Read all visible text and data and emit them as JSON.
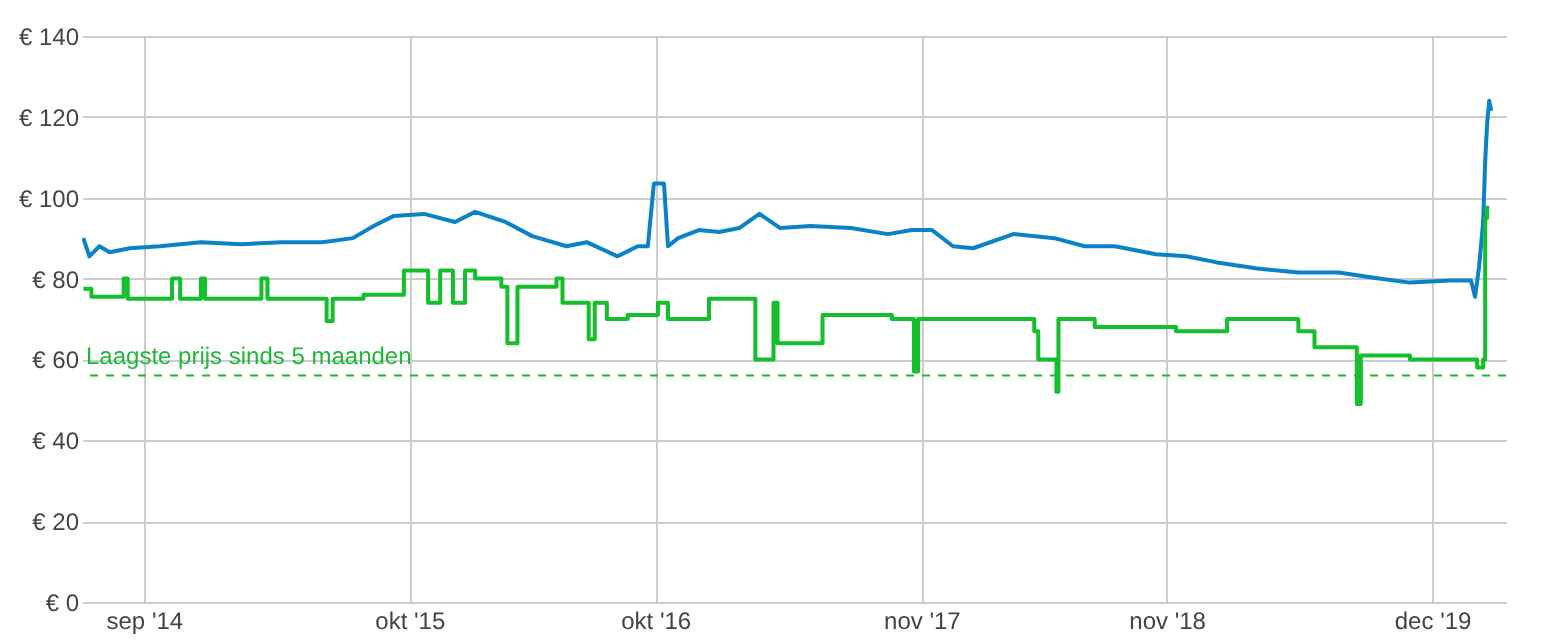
{
  "chart_data": {
    "type": "line",
    "xlim": [
      "2014-06-01",
      "2020-03-20"
    ],
    "xticks": [
      {
        "value": "2014-09-01",
        "label": "sep '14"
      },
      {
        "value": "2015-10-01",
        "label": "okt '15"
      },
      {
        "value": "2016-10-01",
        "label": "okt '16"
      },
      {
        "value": "2017-11-01",
        "label": "nov '17"
      },
      {
        "value": "2018-11-01",
        "label": "nov '18"
      },
      {
        "value": "2019-12-01",
        "label": "dec '19"
      }
    ],
    "ylim": [
      0,
      140
    ],
    "yticks": [
      {
        "value": 0,
        "label": "€ 0"
      },
      {
        "value": 20,
        "label": "€ 20"
      },
      {
        "value": 40,
        "label": "€ 40"
      },
      {
        "value": 60,
        "label": "€ 60"
      },
      {
        "value": 80,
        "label": "€ 80"
      },
      {
        "value": 100,
        "label": "€ 100"
      },
      {
        "value": 120,
        "label": "€ 120"
      },
      {
        "value": 140,
        "label": "€ 140"
      }
    ],
    "grid": true,
    "ref_lines": [
      {
        "axis": "y",
        "value": 56,
        "label": "Laagste prijs sinds 5 maanden",
        "color": "#1fb83a",
        "line_style": "dashed"
      }
    ],
    "series": [
      {
        "type": "line",
        "color": "#0a82c8",
        "x": [
          "2014-06-03",
          "2014-06-12",
          "2014-06-27",
          "2014-07-12",
          "2014-08-11",
          "2014-09-25",
          "2014-11-25",
          "2015-01-24",
          "2015-03-26",
          "2015-05-25",
          "2015-07-09",
          "2015-08-09",
          "2015-09-08",
          "2015-10-23",
          "2015-12-08",
          "2016-01-07",
          "2016-02-21",
          "2016-04-01",
          "2016-05-22",
          "2016-06-21",
          "2016-08-06",
          "2016-09-05",
          "2016-09-20",
          "2016-09-29",
          "2016-10-14",
          "2016-10-20",
          "2016-11-04",
          "2016-12-05",
          "2017-01-04",
          "2017-02-03",
          "2017-03-05",
          "2017-04-05",
          "2017-05-20",
          "2017-07-19",
          "2017-09-12",
          "2017-10-18",
          "2017-11-17",
          "2017-12-18",
          "2018-01-17",
          "2018-03-18",
          "2018-05-18",
          "2018-07-02",
          "2018-08-16",
          "2018-10-16",
          "2018-11-30",
          "2019-01-15",
          "2019-03-16",
          "2019-05-16",
          "2019-07-15",
          "2019-09-13",
          "2019-10-29",
          "2019-12-28",
          "2020-01-28",
          "2020-02-03",
          "2020-02-09",
          "2020-02-15",
          "2020-02-18",
          "2020-02-21",
          "2020-02-24",
          "2020-02-27"
        ],
        "values": [
          90,
          85.5,
          88,
          86.5,
          87.5,
          88,
          89,
          88.5,
          89,
          89,
          90,
          93,
          95.5,
          96,
          94,
          96.5,
          94,
          90.5,
          88,
          89,
          85.5,
          88,
          88,
          103.5,
          103.5,
          88,
          90,
          92,
          91.5,
          92.5,
          96,
          92.5,
          93,
          92.5,
          91,
          92,
          92,
          88,
          87.5,
          91,
          90,
          88,
          88,
          86,
          85.5,
          84,
          82.5,
          81.5,
          81.5,
          80,
          79,
          79.5,
          79.5,
          75.5,
          83,
          94,
          109,
          118.5,
          124,
          121.5
        ]
      },
      {
        "type": "step",
        "color": "#14bf2c",
        "x": [
          "2014-06-03",
          "2014-06-15",
          "2014-08-02",
          "2014-08-08",
          "2014-10-07",
          "2014-10-13",
          "2014-10-25",
          "2014-11-25",
          "2014-12-01",
          "2015-01-24",
          "2015-02-23",
          "2015-03-04",
          "2015-05-25",
          "2015-05-31",
          "2015-06-09",
          "2015-07-25",
          "2015-09-23",
          "2015-10-23",
          "2015-10-29",
          "2015-11-16",
          "2015-12-05",
          "2015-12-23",
          "2016-01-07",
          "2016-02-15",
          "2016-02-24",
          "2016-03-10",
          "2016-05-07",
          "2016-05-16",
          "2016-06-24",
          "2016-07-03",
          "2016-07-21",
          "2016-08-21",
          "2016-10-05",
          "2016-10-20",
          "2016-12-20",
          "2017-02-24",
          "2017-02-27",
          "2017-03-26",
          "2017-04-01",
          "2017-06-04",
          "2017-06-07",
          "2017-09-18",
          "2017-10-21",
          "2017-10-27",
          "2018-02-16",
          "2018-04-18",
          "2018-04-24",
          "2018-05-18",
          "2018-05-21",
          "2018-05-24",
          "2018-07-17",
          "2018-11-15",
          "2019-01-30",
          "2019-05-16",
          "2019-06-09",
          "2019-08-08",
          "2019-08-11",
          "2019-08-17",
          "2019-10-29",
          "2019-12-28",
          "2020-02-06",
          "2020-02-15",
          "2020-02-18",
          "2020-02-21"
        ],
        "values": [
          77.5,
          75.5,
          80,
          75,
          75,
          80,
          75,
          80,
          75,
          75,
          80,
          75,
          75,
          69.5,
          75,
          76,
          82,
          82,
          74,
          82,
          74,
          82,
          80,
          78,
          64,
          78,
          80,
          74,
          65,
          74,
          70,
          71,
          74,
          70,
          75,
          75,
          60,
          74,
          64,
          64,
          71,
          70,
          57,
          70,
          70,
          67,
          60,
          60,
          52,
          70,
          68,
          67,
          70,
          67,
          63,
          63,
          49,
          61,
          60,
          60,
          58,
          60,
          95,
          98
        ]
      }
    ]
  }
}
